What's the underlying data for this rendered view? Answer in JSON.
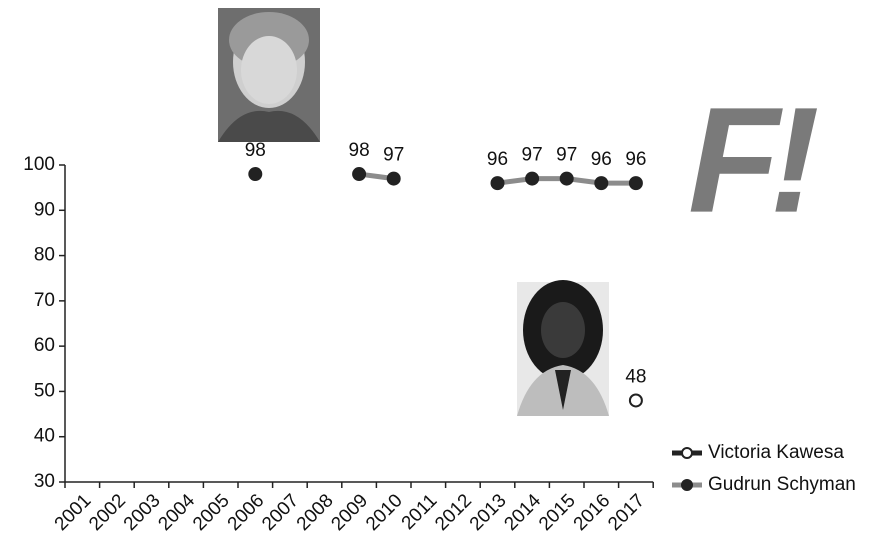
{
  "chart_data": {
    "type": "line",
    "logo": "F!",
    "categories": [
      "2001",
      "2002",
      "2003",
      "2004",
      "2005",
      "2006",
      "2007",
      "2008",
      "2009",
      "2010",
      "2011",
      "2012",
      "2013",
      "2014",
      "2015",
      "2016",
      "2017"
    ],
    "series": [
      {
        "name": "Victoria Kawesa",
        "color": "#222222",
        "marker_color": "#ffffff",
        "values": [
          null,
          null,
          null,
          null,
          null,
          null,
          null,
          null,
          null,
          null,
          null,
          null,
          null,
          null,
          null,
          null,
          48
        ]
      },
      {
        "name": "Gudrun Schyman",
        "color": "#8c8c8c",
        "marker_color": "#222222",
        "values": [
          null,
          null,
          null,
          null,
          null,
          98,
          null,
          null,
          98,
          97,
          null,
          null,
          96,
          97,
          97,
          96,
          96
        ]
      }
    ],
    "ylim": [
      30,
      100
    ],
    "yticks": [
      30,
      40,
      50,
      60,
      70,
      80,
      90,
      100
    ],
    "grid": false,
    "legend": "bottom-right"
  }
}
